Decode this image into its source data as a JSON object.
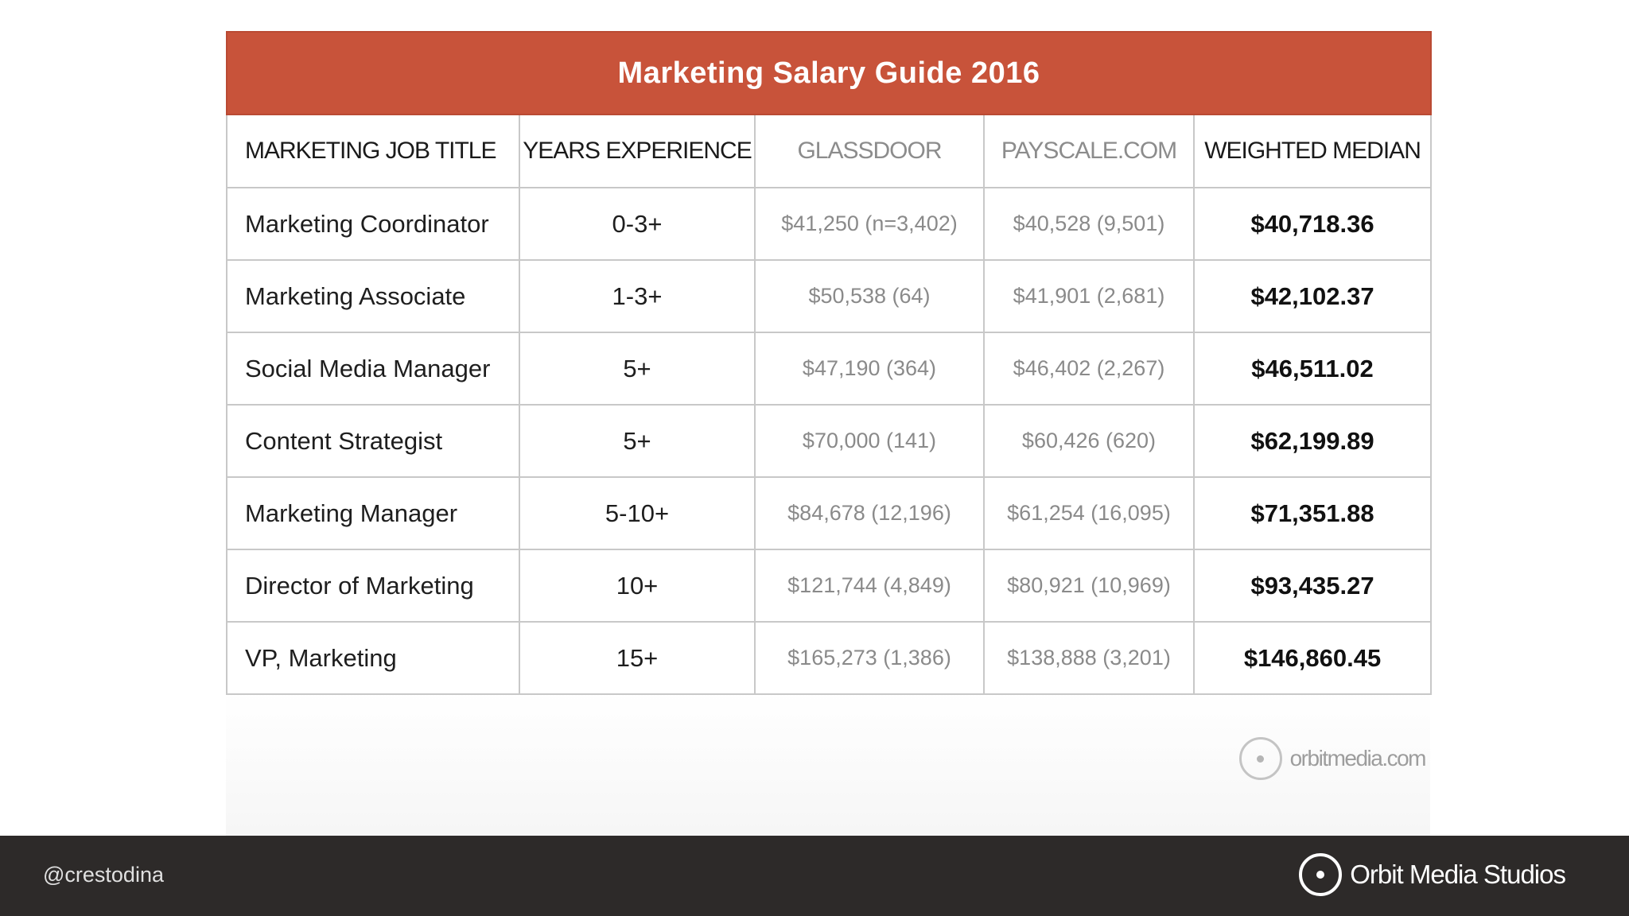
{
  "table": {
    "title": "Marketing Salary Guide 2016",
    "columns": [
      {
        "label": "MARKETING JOB TITLE"
      },
      {
        "label": "YEARS EXPERIENCE"
      },
      {
        "label": "GLASSDOOR"
      },
      {
        "label": "PAYSCALE.COM"
      },
      {
        "label": "WEIGHTED MEDIAN"
      }
    ],
    "rows": [
      {
        "title": "Marketing Coordinator",
        "years": "0-3+",
        "glassdoor": "$41,250 (n=3,402)",
        "payscale": "$40,528 (9,501)",
        "median": "$40,718.36"
      },
      {
        "title": "Marketing Associate",
        "years": "1-3+",
        "glassdoor": "$50,538 (64)",
        "payscale": "$41,901 (2,681)",
        "median": "$42,102.37"
      },
      {
        "title": "Social Media Manager",
        "years": "5+",
        "glassdoor": "$47,190 (364)",
        "payscale": "$46,402 (2,267)",
        "median": "$46,511.02"
      },
      {
        "title": "Content Strategist",
        "years": "5+",
        "glassdoor": "$70,000 (141)",
        "payscale": "$60,426 (620)",
        "median": "$62,199.89"
      },
      {
        "title": "Marketing Manager",
        "years": "5-10+",
        "glassdoor": "$84,678 (12,196)",
        "payscale": "$61,254 (16,095)",
        "median": "$71,351.88"
      },
      {
        "title": "Director of Marketing",
        "years": "10+",
        "glassdoor": "$121,744 (4,849)",
        "payscale": "$80,921 (10,969)",
        "median": "$93,435.27"
      },
      {
        "title": "VP, Marketing",
        "years": "15+",
        "glassdoor": "$165,273 (1,386)",
        "payscale": "$138,888 (3,201)",
        "median": "$146,860.45"
      }
    ],
    "header_color": "#c8533a"
  },
  "watermark": {
    "icon": "orbit-circle-icon",
    "text": "orbitmedia.com"
  },
  "footer": {
    "handle": "@crestodina",
    "brand_icon": "orbit-circle-icon",
    "brand": "Orbit Media Studios",
    "background": "#2d2a29"
  }
}
